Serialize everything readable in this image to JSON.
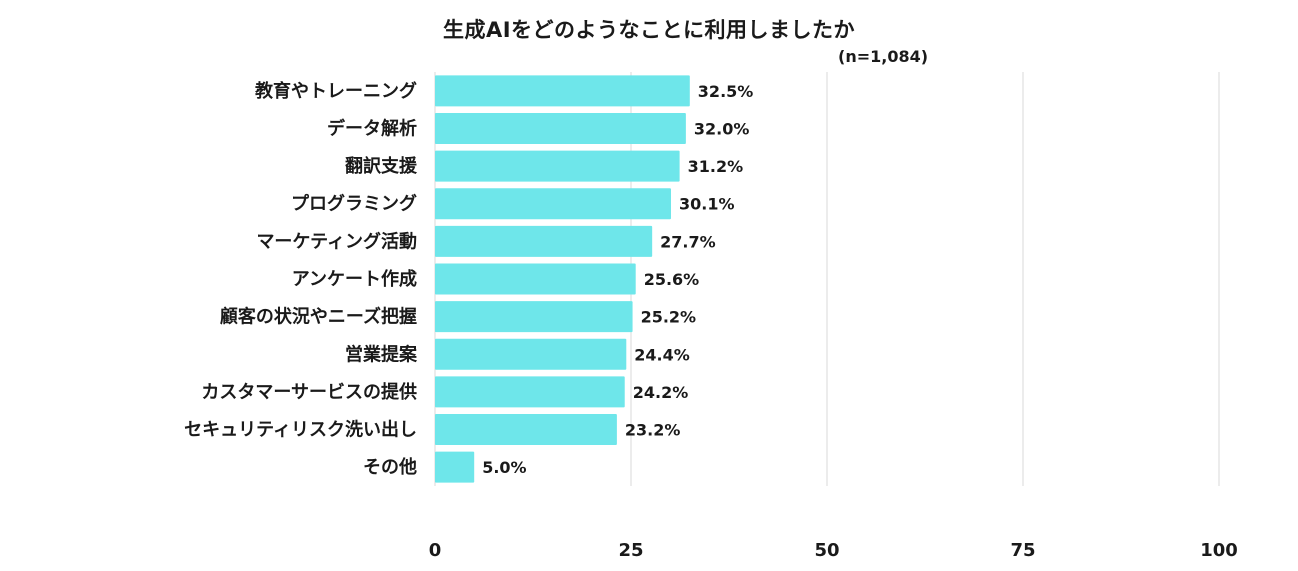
{
  "chart_data": {
    "type": "bar",
    "orientation": "horizontal",
    "title": "生成AIをどのようなことに利用しましたか",
    "note": "(n=1,084)",
    "categories": [
      "教育やトレーニング",
      "データ解析",
      "翻訳支援",
      "プログラミング",
      "マーケティング活動",
      "アンケート作成",
      "顧客の状況やニーズ把握",
      "営業提案",
      "カスタマーサービスの提供",
      "セキュリティリスク洗い出し",
      "その他"
    ],
    "values": [
      32.5,
      32.0,
      31.2,
      30.1,
      27.7,
      25.6,
      25.2,
      24.4,
      24.2,
      23.2,
      5.0
    ],
    "value_labels": [
      "32.5%",
      "32.0%",
      "31.2%",
      "30.1%",
      "27.7%",
      "25.6%",
      "25.2%",
      "24.4%",
      "24.2%",
      "23.2%",
      "5.0%"
    ],
    "xlim": [
      0,
      100
    ],
    "xticks": [
      0,
      25,
      50,
      75,
      100
    ],
    "xtick_labels": [
      "0",
      "25",
      "50",
      "75",
      "100"
    ],
    "grid": true,
    "legend": "none",
    "bar_color": "#6ee6ea",
    "grid_color": "#d9d9d9"
  }
}
